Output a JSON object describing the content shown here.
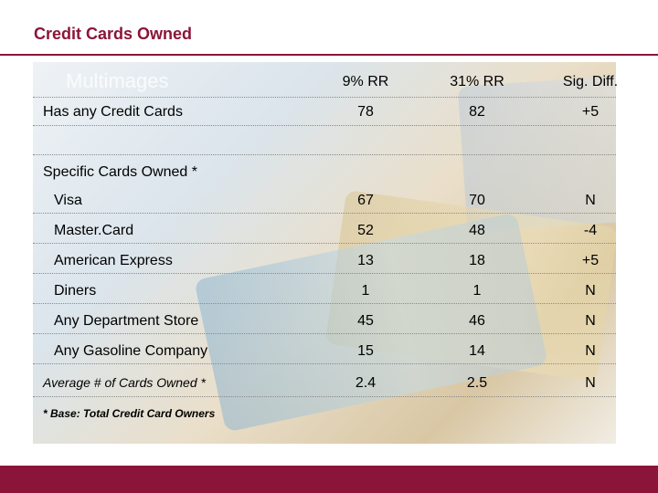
{
  "title": "Credit Cards Owned",
  "watermark": "Multimages",
  "headers": {
    "col1": "9% RR",
    "col2": "31% RR",
    "col3": "Sig. Diff."
  },
  "summary_row": {
    "label": "Has any Credit Cards",
    "v1": "78",
    "v2": "82",
    "v3": "+5"
  },
  "section_label": "Specific Cards Owned *",
  "rows": [
    {
      "label": "Visa",
      "v1": "67",
      "v2": "70",
      "v3": "N"
    },
    {
      "label": "Master.Card",
      "v1": "52",
      "v2": "48",
      "v3": "-4"
    },
    {
      "label": "American Express",
      "v1": "13",
      "v2": "18",
      "v3": "+5"
    },
    {
      "label": "Diners",
      "v1": "1",
      "v2": "1",
      "v3": "N"
    },
    {
      "label": "Any Department Store",
      "v1": "45",
      "v2": "46",
      "v3": "N"
    },
    {
      "label": "Any Gasoline Company",
      "v1": "15",
      "v2": "14",
      "v3": "N"
    }
  ],
  "average_row": {
    "label": "Average # of Cards Owned *",
    "v1": "2.4",
    "v2": "2.5",
    "v3": "N"
  },
  "footnote": "* Base:  Total Credit Card Owners",
  "colors": {
    "accent": "#8b1538"
  }
}
